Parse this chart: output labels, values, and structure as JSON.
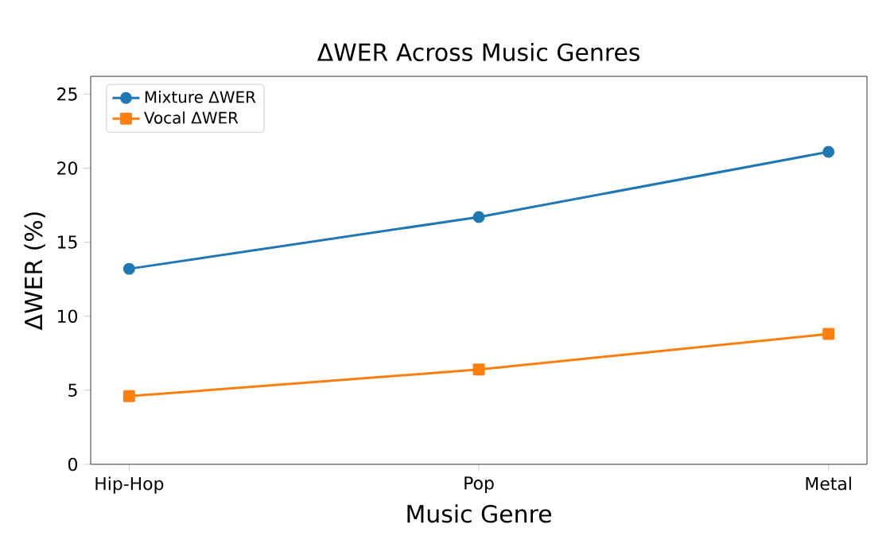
{
  "chart_data": {
    "type": "line",
    "title": "ΔWER Across Music Genres",
    "xlabel": "Music Genre",
    "ylabel": "ΔWER (%)",
    "categories": [
      "Hip-Hop",
      "Pop",
      "Metal"
    ],
    "series": [
      {
        "name": "Mixture ΔWER",
        "color": "#1f77b4",
        "marker": "circle",
        "values": [
          13.2,
          16.7,
          21.1
        ]
      },
      {
        "name": "Vocal ΔWER",
        "color": "#ff7f0e",
        "marker": "square",
        "values": [
          4.6,
          6.4,
          8.8
        ]
      }
    ],
    "ylim": [
      0,
      26.2
    ],
    "yticks": [
      0,
      5,
      10,
      15,
      20,
      25
    ],
    "grid": false,
    "legend": "top left",
    "line_style": "solid"
  }
}
